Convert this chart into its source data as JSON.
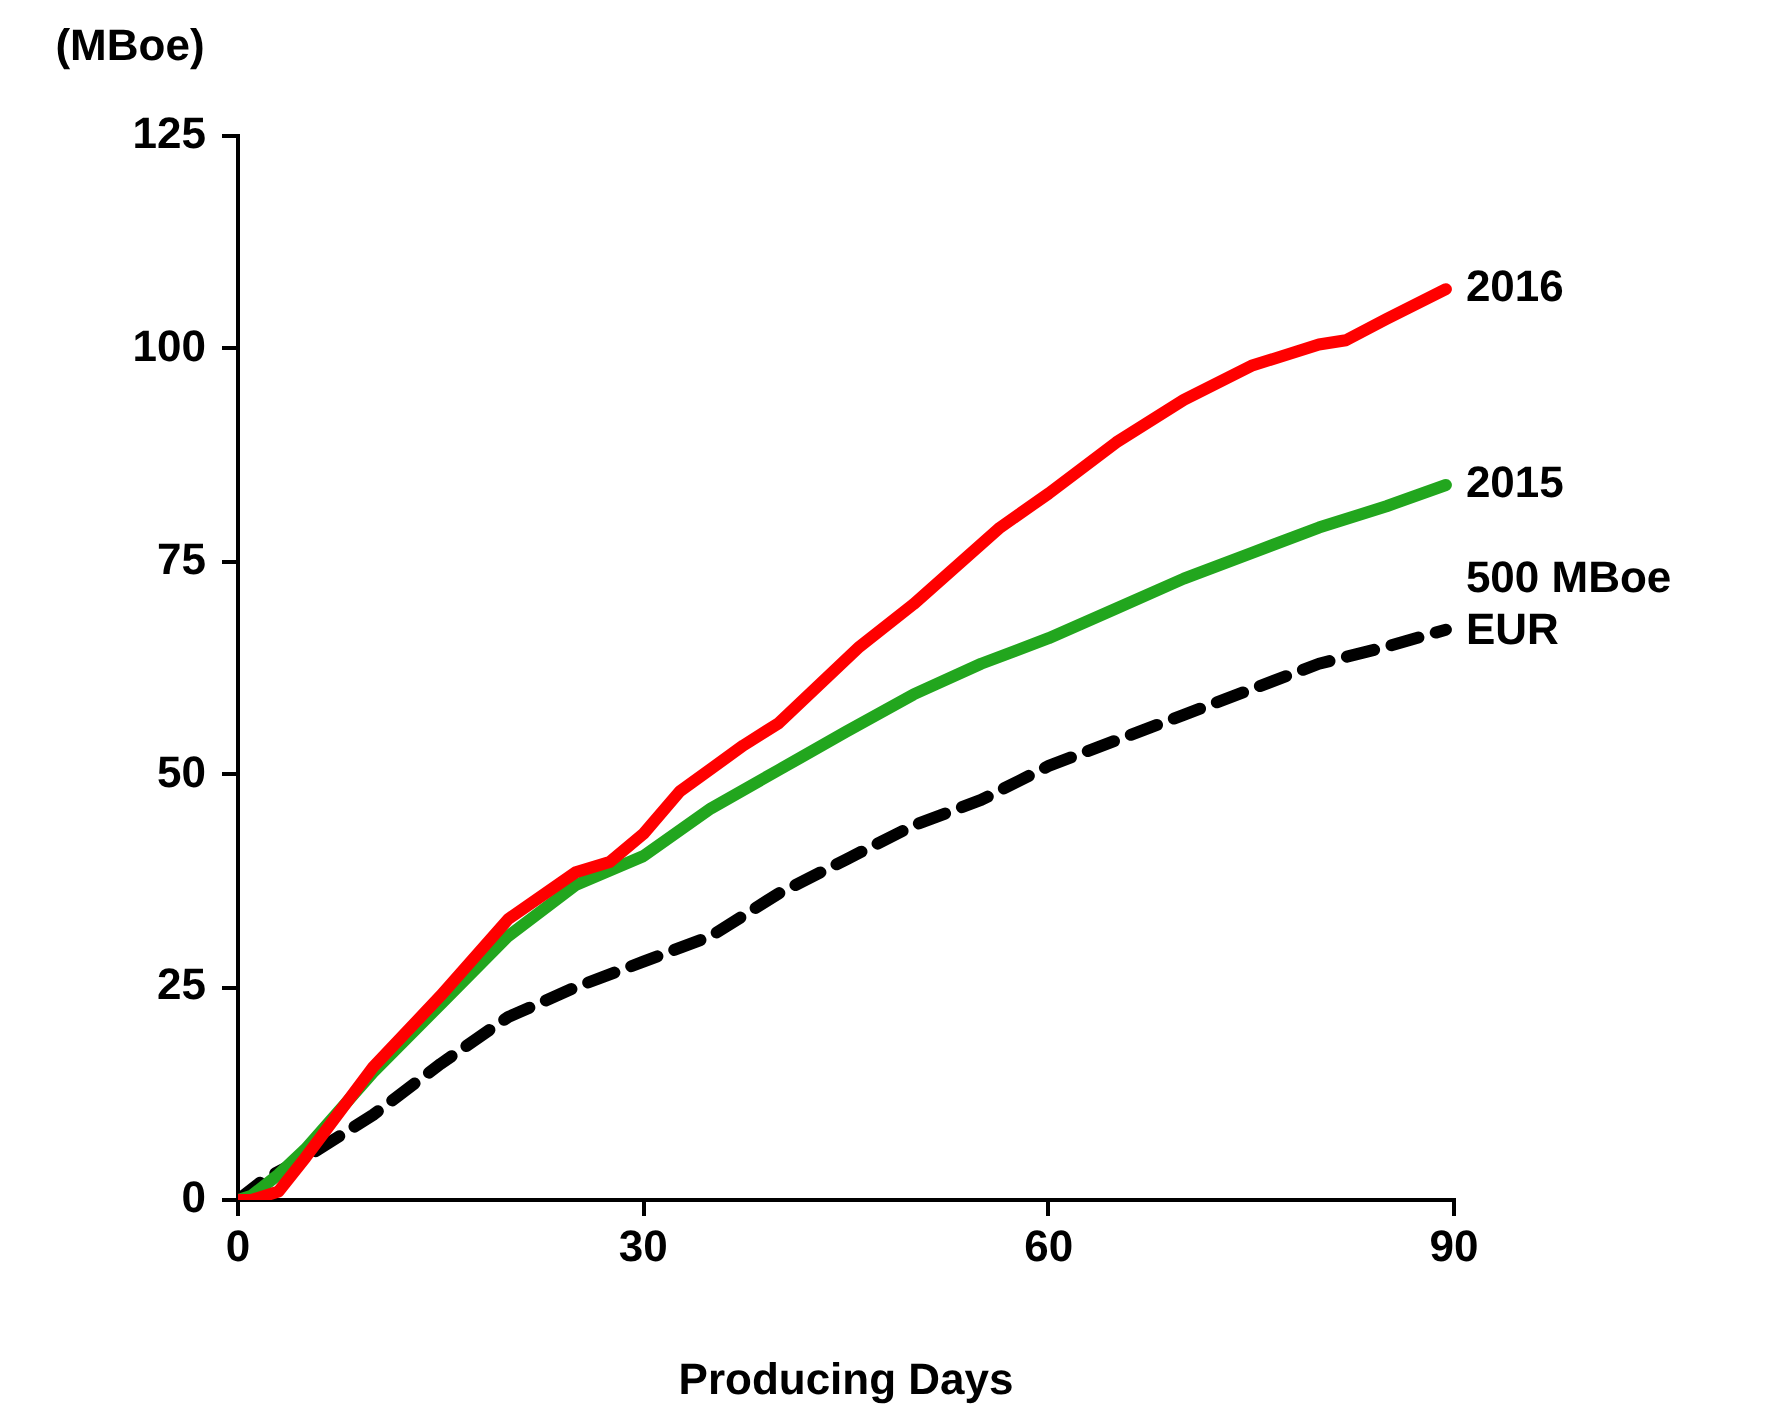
{
  "chart_data": {
    "type": "line",
    "xlabel": "Producing Days",
    "ylabel": "(MBoe)",
    "xlim": [
      0,
      90
    ],
    "xticks": [
      0,
      30,
      60,
      90
    ],
    "ylim": [
      0,
      125
    ],
    "yticks": [
      0,
      25,
      50,
      75,
      100,
      125
    ],
    "grid": false,
    "legend": false,
    "marker": "none",
    "series": [
      {
        "name": "2016",
        "color": "#ff0000",
        "line_style": "solid",
        "x": [
          0,
          1,
          3,
          5,
          10,
          15,
          20,
          25,
          27.5,
          30,
          32.7,
          37.4,
          40,
          46,
          50,
          56.4,
          60,
          65,
          70,
          75,
          80,
          82,
          85,
          89.4
        ],
        "values": [
          0,
          0,
          1,
          5,
          15.6,
          24,
          33,
          38.5,
          39.7,
          43,
          48,
          53.4,
          56,
          65,
          70,
          79,
          83,
          89,
          94,
          98,
          100.5,
          101,
          103.5,
          107
        ]
      },
      {
        "name": "2015",
        "color": "#22a61e",
        "line_style": "solid",
        "x": [
          0,
          1,
          3,
          5,
          10,
          15,
          20,
          25,
          30,
          35,
          40,
          45,
          50,
          55,
          60,
          65,
          70,
          75,
          80,
          85,
          89.4
        ],
        "values": [
          0,
          0.5,
          3,
          6,
          15,
          23,
          31,
          37,
          40.4,
          46,
          50.5,
          55,
          59.4,
          63,
          66,
          69.5,
          73,
          76,
          79,
          81.5,
          84
        ]
      },
      {
        "name": "500 MBoe EUR",
        "color": "#000000",
        "line_style": "dashed",
        "x": [
          0,
          2,
          5,
          10,
          15,
          20,
          25,
          30,
          35,
          40,
          45,
          50,
          55,
          60,
          65,
          70,
          75,
          80,
          85,
          89.4
        ],
        "values": [
          0,
          2.5,
          5,
          10,
          16,
          21.5,
          25,
          28,
          31,
          36,
          40,
          44,
          47,
          51,
          54,
          57,
          60,
          63,
          65,
          67
        ]
      }
    ]
  }
}
